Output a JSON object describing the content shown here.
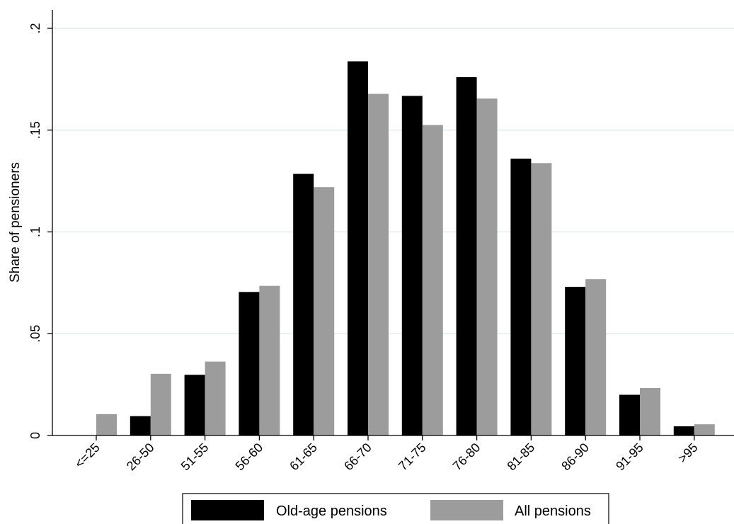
{
  "chart_data": {
    "type": "bar",
    "title": "",
    "xlabel": "",
    "ylabel": "Share of pensioners",
    "ylim": [
      0,
      0.2
    ],
    "yticks": [
      {
        "value": 0,
        "label": "0"
      },
      {
        "value": 0.05,
        "label": ".05"
      },
      {
        "value": 0.1,
        "label": ".1"
      },
      {
        "value": 0.15,
        "label": ".15"
      },
      {
        "value": 0.2,
        "label": ".2"
      }
    ],
    "grid": true,
    "legend_position": "bottom",
    "categories": [
      "<=25",
      "26-50",
      "51-55",
      "56-60",
      "61-65",
      "66-70",
      "71-75",
      "76-80",
      "81-85",
      "86-90",
      "91-95",
      ">95"
    ],
    "series": [
      {
        "name": "Old-age pensions",
        "color": "#000000",
        "values": [
          0,
          0.0095,
          0.0298,
          0.0705,
          0.1285,
          0.1838,
          0.1668,
          0.176,
          0.136,
          0.073,
          0.02,
          0.0045
        ]
      },
      {
        "name": "All pensions",
        "color": "#9c9c9c",
        "values": [
          0.0105,
          0.0303,
          0.0363,
          0.0735,
          0.122,
          0.1678,
          0.1525,
          0.1655,
          0.1338,
          0.0768,
          0.0233,
          0.0055
        ]
      }
    ]
  }
}
